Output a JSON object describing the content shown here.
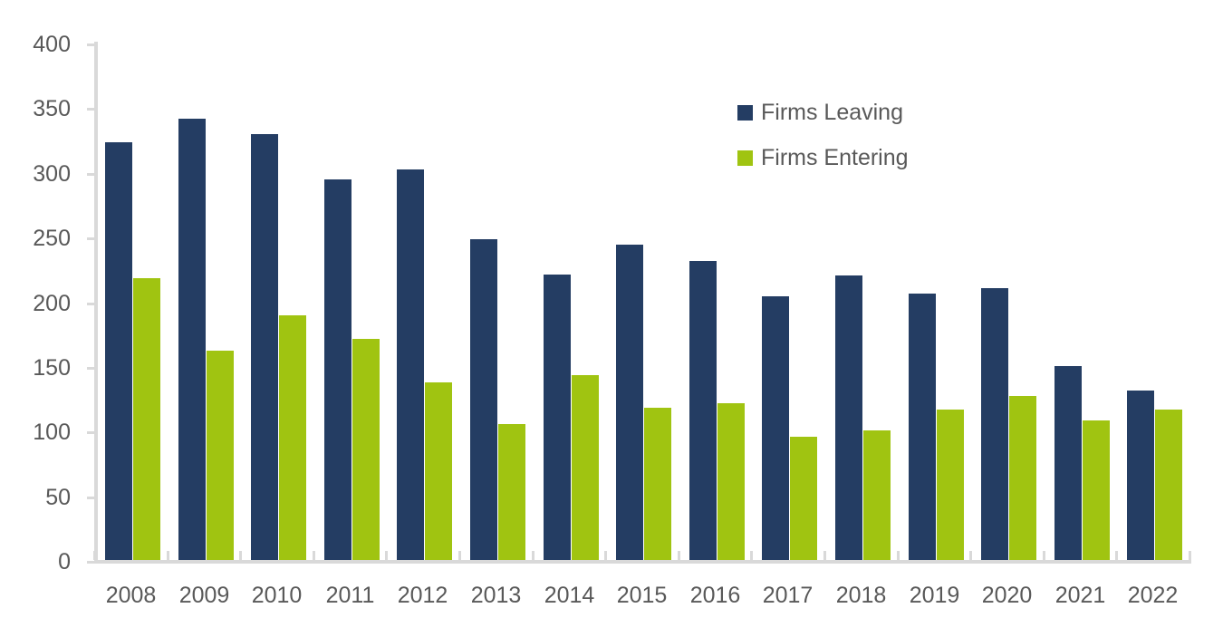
{
  "chart_data": {
    "type": "bar",
    "title": "",
    "xlabel": "",
    "ylabel": "",
    "categories": [
      "2008",
      "2009",
      "2010",
      "2011",
      "2012",
      "2013",
      "2014",
      "2015",
      "2016",
      "2017",
      "2018",
      "2019",
      "2020",
      "2021",
      "2022"
    ],
    "series": [
      {
        "name": "Firms Leaving",
        "color": "#243D63",
        "values": [
          323,
          341,
          329,
          294,
          302,
          248,
          221,
          244,
          231,
          204,
          220,
          206,
          210,
          150,
          131
        ]
      },
      {
        "name": "Firms Entering",
        "color": "#A0C411",
        "values": [
          218,
          162,
          189,
          171,
          137,
          105,
          143,
          118,
          121,
          95,
          100,
          116,
          127,
          108,
          116
        ]
      }
    ],
    "ylim": [
      0,
      400
    ],
    "yticks": [
      0,
      50,
      100,
      150,
      200,
      250,
      300,
      350,
      400
    ],
    "grid": false,
    "legend_position": "inside-top-right",
    "axis_color": "#D9D9D9",
    "label_color": "#595959",
    "background_color": "#FFFFFF"
  }
}
